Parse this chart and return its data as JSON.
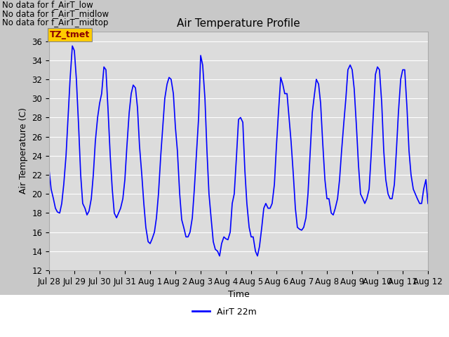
{
  "title": "Air Temperature Profile",
  "xlabel": "Time",
  "ylabel": "Air Temperature (C)",
  "ylim": [
    12,
    37
  ],
  "yticks": [
    12,
    14,
    16,
    18,
    20,
    22,
    24,
    26,
    28,
    30,
    32,
    34,
    36
  ],
  "line_color": "blue",
  "line_width": 1.2,
  "figure_bg": "#c8c8c8",
  "plot_bg": "#dcdcdc",
  "legend_label": "AirT 22m",
  "annotations": [
    "No data for f_AirT_low",
    "No data for f_AirT_midlow",
    "No data for f_AirT_midtop"
  ],
  "annotation_color": "black",
  "annotation_fontsize": 8.5,
  "box_label": "TZ_tmet",
  "box_color": "#ffcc00",
  "box_text_color": "#8b0000",
  "x_tick_labels": [
    "Jul 28",
    "Jul 29",
    "Jul 30",
    "Jul 31",
    "Aug 1",
    "Aug 2",
    "Aug 3",
    "Aug 4",
    "Aug 5",
    "Aug 6",
    "Aug 7",
    "Aug 8",
    "Aug 9",
    "Aug 10",
    "Aug 11",
    "Aug 12"
  ],
  "time_data": [
    0,
    0.08,
    0.17,
    0.25,
    0.33,
    0.42,
    0.5,
    0.58,
    0.67,
    0.75,
    0.83,
    0.92,
    1.0,
    1.08,
    1.17,
    1.25,
    1.33,
    1.42,
    1.5,
    1.58,
    1.67,
    1.75,
    1.83,
    1.92,
    2.0,
    2.08,
    2.17,
    2.25,
    2.33,
    2.42,
    2.5,
    2.58,
    2.67,
    2.75,
    2.83,
    2.92,
    3.0,
    3.08,
    3.17,
    3.25,
    3.33,
    3.42,
    3.5,
    3.58,
    3.67,
    3.75,
    3.83,
    3.92,
    4.0,
    4.08,
    4.17,
    4.25,
    4.33,
    4.42,
    4.5,
    4.58,
    4.67,
    4.75,
    4.83,
    4.92,
    5.0,
    5.08,
    5.17,
    5.25,
    5.33,
    5.42,
    5.5,
    5.58,
    5.67,
    5.75,
    5.83,
    5.92,
    6.0,
    6.08,
    6.17,
    6.25,
    6.33,
    6.42,
    6.5,
    6.58,
    6.67,
    6.75,
    6.83,
    6.92,
    7.0,
    7.08,
    7.17,
    7.25,
    7.33,
    7.42,
    7.5,
    7.58,
    7.67,
    7.75,
    7.83,
    7.92,
    8.0,
    8.08,
    8.17,
    8.25,
    8.33,
    8.42,
    8.5,
    8.58,
    8.67,
    8.75,
    8.83,
    8.92,
    9.0,
    9.08,
    9.17,
    9.25,
    9.33,
    9.42,
    9.5,
    9.58,
    9.67,
    9.75,
    9.83,
    9.92,
    10.0,
    10.08,
    10.17,
    10.25,
    10.33,
    10.42,
    10.5,
    10.58,
    10.67,
    10.75,
    10.83,
    10.92,
    11.0,
    11.08,
    11.17,
    11.25,
    11.33,
    11.42,
    11.5,
    11.58,
    11.67,
    11.75,
    11.83,
    11.92,
    12.0,
    12.08,
    12.17,
    12.25,
    12.33,
    12.42,
    12.5,
    12.58,
    12.67,
    12.75,
    12.83,
    12.92,
    13.0,
    13.08,
    13.17,
    13.25,
    13.33,
    13.42,
    13.5,
    13.58,
    13.67,
    13.75,
    13.83,
    13.92,
    14.0,
    14.08,
    14.17,
    14.25,
    14.33,
    14.42,
    14.5,
    14.58,
    14.67,
    14.75,
    14.83,
    14.92,
    15.0
  ],
  "temp_data": [
    22.5,
    20.5,
    19.5,
    18.5,
    18.1,
    18.0,
    19.0,
    21.0,
    24.0,
    28.0,
    32.0,
    35.5,
    35.0,
    32.0,
    27.0,
    22.0,
    19.0,
    18.5,
    17.8,
    18.2,
    19.5,
    22.0,
    25.5,
    28.0,
    29.5,
    30.5,
    33.3,
    33.0,
    29.0,
    24.0,
    20.5,
    18.0,
    17.5,
    18.0,
    18.5,
    19.5,
    21.5,
    25.0,
    28.5,
    30.5,
    31.4,
    31.1,
    29.0,
    25.0,
    22.0,
    19.0,
    16.5,
    15.0,
    14.8,
    15.3,
    16.0,
    17.5,
    20.0,
    24.0,
    27.0,
    30.0,
    31.5,
    32.2,
    32.0,
    30.5,
    27.0,
    24.5,
    20.0,
    17.3,
    16.5,
    15.5,
    15.5,
    16.0,
    17.5,
    20.5,
    24.0,
    28.0,
    34.5,
    33.5,
    30.0,
    24.5,
    20.0,
    17.3,
    15.0,
    14.2,
    14.0,
    13.5,
    14.8,
    15.5,
    15.3,
    15.2,
    16.0,
    19.0,
    20.0,
    24.0,
    27.8,
    28.0,
    27.5,
    22.5,
    19.0,
    16.5,
    15.5,
    15.5,
    14.0,
    13.5,
    14.5,
    16.5,
    18.5,
    19.0,
    18.5,
    18.5,
    19.0,
    21.0,
    25.0,
    28.5,
    32.2,
    31.5,
    30.5,
    30.5,
    28.0,
    25.5,
    22.0,
    18.5,
    16.5,
    16.3,
    16.2,
    16.5,
    17.5,
    20.0,
    24.0,
    28.5,
    30.3,
    32.0,
    31.5,
    29.5,
    25.5,
    21.5,
    19.5,
    19.5,
    18.0,
    17.8,
    18.5,
    19.5,
    21.5,
    24.5,
    27.5,
    30.0,
    33.0,
    33.5,
    33.0,
    31.0,
    27.0,
    23.0,
    20.0,
    19.5,
    19.0,
    19.5,
    20.5,
    24.0,
    28.0,
    32.5,
    33.3,
    33.0,
    29.5,
    24.5,
    21.5,
    20.0,
    19.5,
    19.5,
    21.0,
    24.5,
    28.5,
    32.0,
    33.0,
    33.0,
    29.0,
    24.5,
    22.0,
    20.5,
    20.0,
    19.5,
    19.0,
    19.0,
    20.5,
    21.5,
    19.0
  ]
}
